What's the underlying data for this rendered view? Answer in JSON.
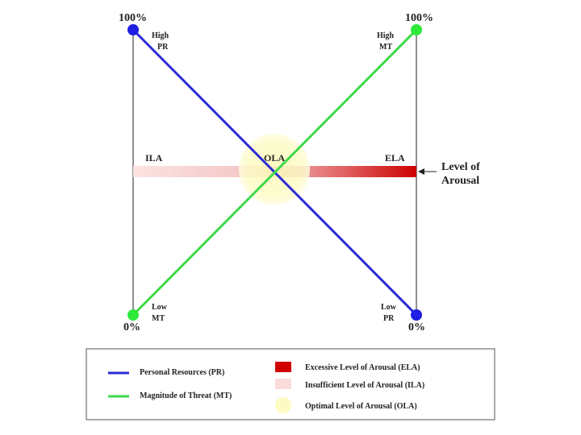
{
  "corners": {
    "top_left_pct": "100%",
    "top_right_pct": "100%",
    "bottom_left_pct": "0%",
    "bottom_right_pct": "0%"
  },
  "labels": {
    "high_pr": [
      "High",
      "PR"
    ],
    "high_mt": [
      "High",
      "MT"
    ],
    "low_mt": [
      "Low",
      "MT"
    ],
    "low_pr": [
      "Low",
      "PR"
    ],
    "ila": "ILA",
    "ola": "OLA",
    "ela": "ELA",
    "level_of_arousal": [
      "Level of",
      "Arousal"
    ]
  },
  "legend": {
    "pr": "Personal Resources (PR)",
    "mt": "Magnitude of Threat (MT)",
    "ela": "Excessive Level of Arousal (ELA)",
    "ila": "Insufficient Level of Arousal (ILA)",
    "ola": "Optimal Level of Arousal (OLA)"
  },
  "colors": {
    "pr_line": "#2b2bd6",
    "pr_dot": "#1f1fe6",
    "mt_line": "#3fd94a",
    "mt_dot": "#2ee83a",
    "ela": "#d10000",
    "ila": "#fbdada",
    "ola": "#fdfbc4",
    "axis": "#222222",
    "legend_border": "#555555"
  }
}
